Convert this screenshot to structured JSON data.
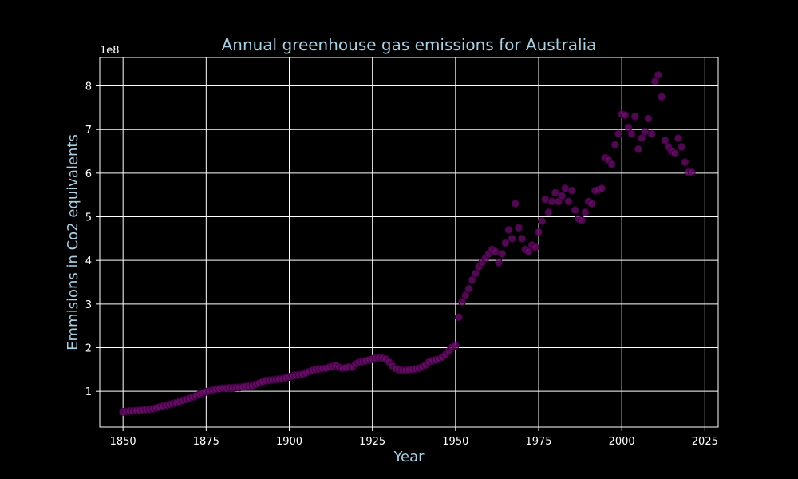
{
  "chart_data": {
    "type": "scatter",
    "title": "Annual greenhouse gas emissions for Australia",
    "xlabel": "Year",
    "ylabel": "Emmisions in Co2 equivalents",
    "y_offset_label": "1e8",
    "y_scale": 100000000,
    "xlim": [
      1843,
      2029
    ],
    "ylim": [
      0.18,
      8.65
    ],
    "xticks": [
      1850,
      1875,
      1900,
      1925,
      1950,
      1975,
      2000,
      2025
    ],
    "yticks": [
      1,
      2,
      3,
      4,
      5,
      6,
      7,
      8
    ],
    "grid": true,
    "point_color": "#6a0f6a",
    "x": [
      1850,
      1851,
      1852,
      1853,
      1854,
      1855,
      1856,
      1857,
      1858,
      1859,
      1860,
      1861,
      1862,
      1863,
      1864,
      1865,
      1866,
      1867,
      1868,
      1869,
      1870,
      1871,
      1872,
      1873,
      1874,
      1875,
      1876,
      1877,
      1878,
      1879,
      1880,
      1881,
      1882,
      1883,
      1884,
      1885,
      1886,
      1887,
      1888,
      1889,
      1890,
      1891,
      1892,
      1893,
      1894,
      1895,
      1896,
      1897,
      1898,
      1899,
      1900,
      1901,
      1902,
      1903,
      1904,
      1905,
      1906,
      1907,
      1908,
      1909,
      1910,
      1911,
      1912,
      1913,
      1914,
      1915,
      1916,
      1917,
      1918,
      1919,
      1920,
      1921,
      1922,
      1923,
      1924,
      1925,
      1926,
      1927,
      1928,
      1929,
      1930,
      1931,
      1932,
      1933,
      1934,
      1935,
      1936,
      1937,
      1938,
      1939,
      1940,
      1941,
      1942,
      1943,
      1944,
      1945,
      1946,
      1947,
      1948,
      1949,
      1950,
      1951,
      1952,
      1953,
      1954,
      1955,
      1956,
      1957,
      1958,
      1959,
      1960,
      1961,
      1962,
      1963,
      1964,
      1965,
      1966,
      1967,
      1968,
      1969,
      1970,
      1971,
      1972,
      1973,
      1974,
      1975,
      1976,
      1977,
      1978,
      1979,
      1980,
      1981,
      1982,
      1983,
      1984,
      1985,
      1986,
      1987,
      1988,
      1989,
      1990,
      1991,
      1992,
      1993,
      1994,
      1995,
      1996,
      1997,
      1998,
      1999,
      2000,
      2001,
      2002,
      2003,
      2004,
      2005,
      2006,
      2007,
      2008,
      2009,
      2010,
      2011,
      2012,
      2013,
      2014,
      2015,
      2016,
      2017,
      2018,
      2019,
      2020,
      2021
    ],
    "values": [
      0.53,
      0.54,
      0.55,
      0.55,
      0.56,
      0.56,
      0.57,
      0.58,
      0.59,
      0.6,
      0.62,
      0.64,
      0.66,
      0.68,
      0.7,
      0.72,
      0.74,
      0.76,
      0.79,
      0.81,
      0.84,
      0.87,
      0.9,
      0.93,
      0.96,
      0.99,
      1.01,
      1.03,
      1.05,
      1.06,
      1.07,
      1.07,
      1.08,
      1.08,
      1.09,
      1.09,
      1.1,
      1.11,
      1.12,
      1.13,
      1.16,
      1.19,
      1.22,
      1.24,
      1.25,
      1.26,
      1.27,
      1.28,
      1.29,
      1.31,
      1.33,
      1.35,
      1.37,
      1.38,
      1.39,
      1.42,
      1.45,
      1.48,
      1.5,
      1.51,
      1.52,
      1.53,
      1.55,
      1.57,
      1.59,
      1.55,
      1.53,
      1.54,
      1.56,
      1.55,
      1.63,
      1.67,
      1.68,
      1.7,
      1.72,
      1.74,
      1.76,
      1.77,
      1.76,
      1.74,
      1.67,
      1.58,
      1.52,
      1.49,
      1.48,
      1.48,
      1.49,
      1.5,
      1.51,
      1.53,
      1.56,
      1.6,
      1.67,
      1.7,
      1.72,
      1.74,
      1.78,
      1.84,
      1.92,
      2.01,
      2.05,
      2.7,
      3.05,
      3.2,
      3.35,
      3.55,
      3.7,
      3.85,
      3.95,
      4.05,
      4.15,
      4.25,
      4.2,
      3.95,
      4.15,
      4.4,
      4.7,
      4.5,
      5.3,
      4.75,
      4.5,
      4.25,
      4.2,
      4.35,
      4.3,
      4.65,
      4.9,
      5.4,
      5.1,
      5.35,
      5.55,
      5.35,
      5.48,
      5.65,
      5.35,
      5.6,
      5.15,
      4.95,
      4.92,
      5.1,
      5.35,
      5.3,
      5.6,
      5.62,
      5.65,
      6.35,
      6.3,
      6.2,
      6.65,
      6.9,
      7.35,
      7.33,
      7.05,
      6.9,
      7.3,
      6.55,
      6.8,
      6.95,
      7.25,
      6.9,
      8.1,
      8.25,
      7.75,
      6.75,
      6.6,
      6.5,
      6.45,
      6.8,
      6.6,
      6.25,
      6.02,
      6.02
    ]
  }
}
